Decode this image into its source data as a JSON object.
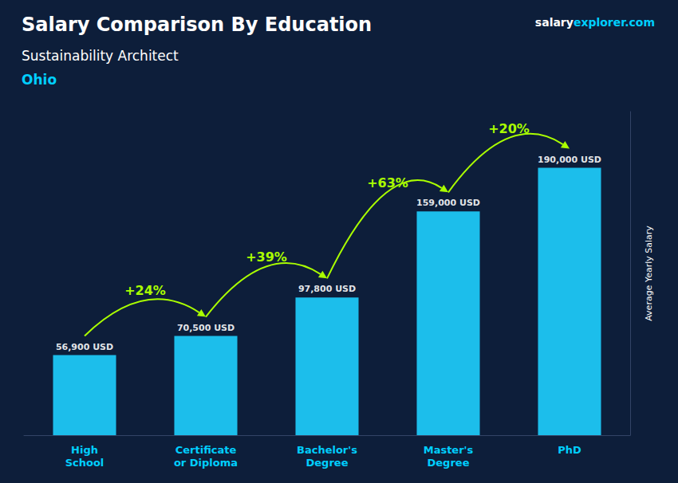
{
  "chart_data": {
    "type": "bar",
    "title": "Salary Comparison By Education",
    "subtitle": "Sustainability Architect",
    "location": "Ohio",
    "watermark": [
      "salary",
      "explorer.com"
    ],
    "ylabel": "Average Yearly Salary",
    "categories": [
      "High\nSchool",
      "Certificate\nor Diploma",
      "Bachelor's\nDegree",
      "Master's\nDegree",
      "PhD"
    ],
    "values": [
      56900,
      70500,
      97800,
      159000,
      190000
    ],
    "value_labels": [
      "56,900 USD",
      "70,500 USD",
      "97,800 USD",
      "159,000 USD",
      "190,000 USD"
    ],
    "data_labels": true,
    "annotations": [
      "+24%",
      "+39%",
      "+63%",
      "+20%"
    ],
    "color": "#1ecfff",
    "ylim": [
      0,
      230000
    ],
    "grid": false,
    "tick_labels": "x"
  }
}
